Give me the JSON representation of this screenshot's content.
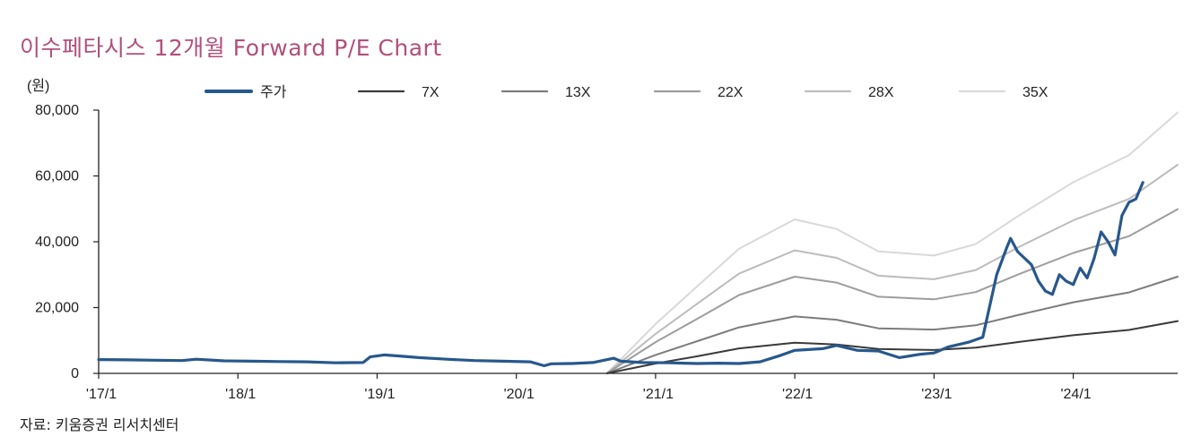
{
  "title": "이수페타시스  12개월  Forward P/E Chart",
  "source": "자료:  키움증권  리서치센터",
  "chart_data": {
    "type": "line",
    "unit_label": "(원)",
    "x_ticks": [
      "'17/1",
      "'18/1",
      "'19/1",
      "'20/1",
      "'21/1",
      "'22/1",
      "'23/1",
      "'24/1"
    ],
    "y_ticks": [
      "80,000",
      "60,000",
      "40,000",
      "20,000",
      "0"
    ],
    "ylim": [
      0,
      80000
    ],
    "xlim": [
      2017.0,
      2024.75
    ],
    "series": [
      {
        "name": "주가",
        "color": "#27588c",
        "points": [
          [
            2017.0,
            4200
          ],
          [
            2017.2,
            4100
          ],
          [
            2017.4,
            4000
          ],
          [
            2017.6,
            3900
          ],
          [
            2017.7,
            4300
          ],
          [
            2017.9,
            3800
          ],
          [
            2018.1,
            3700
          ],
          [
            2018.3,
            3600
          ],
          [
            2018.5,
            3500
          ],
          [
            2018.7,
            3200
          ],
          [
            2018.9,
            3300
          ],
          [
            2018.95,
            5000
          ],
          [
            2019.05,
            5600
          ],
          [
            2019.15,
            5300
          ],
          [
            2019.3,
            4800
          ],
          [
            2019.5,
            4300
          ],
          [
            2019.7,
            3900
          ],
          [
            2019.9,
            3700
          ],
          [
            2020.1,
            3500
          ],
          [
            2020.2,
            2300
          ],
          [
            2020.25,
            2900
          ],
          [
            2020.4,
            3000
          ],
          [
            2020.55,
            3300
          ],
          [
            2020.7,
            4600
          ],
          [
            2020.75,
            3700
          ],
          [
            2020.9,
            3300
          ],
          [
            2021.1,
            3200
          ],
          [
            2021.3,
            3000
          ],
          [
            2021.45,
            3100
          ],
          [
            2021.6,
            3000
          ],
          [
            2021.75,
            3500
          ],
          [
            2021.9,
            5500
          ],
          [
            2022.0,
            7000
          ],
          [
            2022.2,
            7500
          ],
          [
            2022.3,
            8500
          ],
          [
            2022.45,
            7000
          ],
          [
            2022.6,
            6800
          ],
          [
            2022.75,
            4800
          ],
          [
            2022.9,
            5800
          ],
          [
            2023.0,
            6200
          ],
          [
            2023.1,
            8000
          ],
          [
            2023.25,
            9500
          ],
          [
            2023.35,
            11000
          ],
          [
            2023.45,
            30000
          ],
          [
            2023.52,
            38000
          ],
          [
            2023.55,
            41000
          ],
          [
            2023.6,
            37000
          ],
          [
            2023.65,
            35000
          ],
          [
            2023.7,
            33000
          ],
          [
            2023.75,
            28000
          ],
          [
            2023.8,
            25000
          ],
          [
            2023.85,
            24000
          ],
          [
            2023.9,
            30000
          ],
          [
            2023.95,
            28000
          ],
          [
            2024.0,
            27000
          ],
          [
            2024.05,
            32000
          ],
          [
            2024.1,
            29000
          ],
          [
            2024.15,
            35000
          ],
          [
            2024.2,
            43000
          ],
          [
            2024.25,
            40000
          ],
          [
            2024.3,
            36000
          ],
          [
            2024.35,
            48000
          ],
          [
            2024.4,
            52000
          ],
          [
            2024.45,
            53000
          ],
          [
            2024.5,
            58000
          ]
        ]
      },
      {
        "name": "7X",
        "color": "#3a3a3a",
        "points": [
          [
            2020.65,
            0
          ],
          [
            2021.0,
            3000
          ],
          [
            2021.3,
            5200
          ],
          [
            2021.6,
            7600
          ],
          [
            2022.0,
            9300
          ],
          [
            2022.3,
            8800
          ],
          [
            2022.6,
            7400
          ],
          [
            2023.0,
            7100
          ],
          [
            2023.3,
            7800
          ],
          [
            2023.6,
            9500
          ],
          [
            2024.0,
            11600
          ],
          [
            2024.4,
            13200
          ],
          [
            2024.75,
            15900
          ]
        ]
      },
      {
        "name": "13X",
        "color": "#7c7c7c",
        "points": [
          [
            2020.65,
            0
          ],
          [
            2021.0,
            5600
          ],
          [
            2021.3,
            9800
          ],
          [
            2021.6,
            14000
          ],
          [
            2022.0,
            17300
          ],
          [
            2022.3,
            16300
          ],
          [
            2022.6,
            13700
          ],
          [
            2023.0,
            13300
          ],
          [
            2023.3,
            14600
          ],
          [
            2023.6,
            17700
          ],
          [
            2024.0,
            21600
          ],
          [
            2024.4,
            24600
          ],
          [
            2024.75,
            29400
          ]
        ]
      },
      {
        "name": "22X",
        "color": "#9d9d9d",
        "points": [
          [
            2020.65,
            0
          ],
          [
            2021.0,
            9500
          ],
          [
            2021.3,
            16600
          ],
          [
            2021.6,
            23800
          ],
          [
            2022.0,
            29400
          ],
          [
            2022.3,
            27600
          ],
          [
            2022.6,
            23300
          ],
          [
            2023.0,
            22500
          ],
          [
            2023.3,
            24700
          ],
          [
            2023.6,
            30000
          ],
          [
            2024.0,
            36600
          ],
          [
            2024.4,
            41700
          ],
          [
            2024.75,
            49900
          ]
        ]
      },
      {
        "name": "28X",
        "color": "#bcbcbc",
        "points": [
          [
            2020.65,
            0
          ],
          [
            2021.0,
            12000
          ],
          [
            2021.3,
            21200
          ],
          [
            2021.6,
            30300
          ],
          [
            2022.0,
            37400
          ],
          [
            2022.3,
            35100
          ],
          [
            2022.6,
            29700
          ],
          [
            2023.0,
            28600
          ],
          [
            2023.3,
            31400
          ],
          [
            2023.6,
            38200
          ],
          [
            2024.0,
            46500
          ],
          [
            2024.4,
            53000
          ],
          [
            2024.75,
            63400
          ]
        ]
      },
      {
        "name": "35X",
        "color": "#d9d9d9",
        "points": [
          [
            2020.65,
            0
          ],
          [
            2021.0,
            15000
          ],
          [
            2021.3,
            26500
          ],
          [
            2021.6,
            37900
          ],
          [
            2022.0,
            46800
          ],
          [
            2022.3,
            43900
          ],
          [
            2022.6,
            37100
          ],
          [
            2023.0,
            35800
          ],
          [
            2023.3,
            39300
          ],
          [
            2023.6,
            47700
          ],
          [
            2024.0,
            58100
          ],
          [
            2024.4,
            66300
          ],
          [
            2024.75,
            79300
          ]
        ]
      }
    ]
  }
}
